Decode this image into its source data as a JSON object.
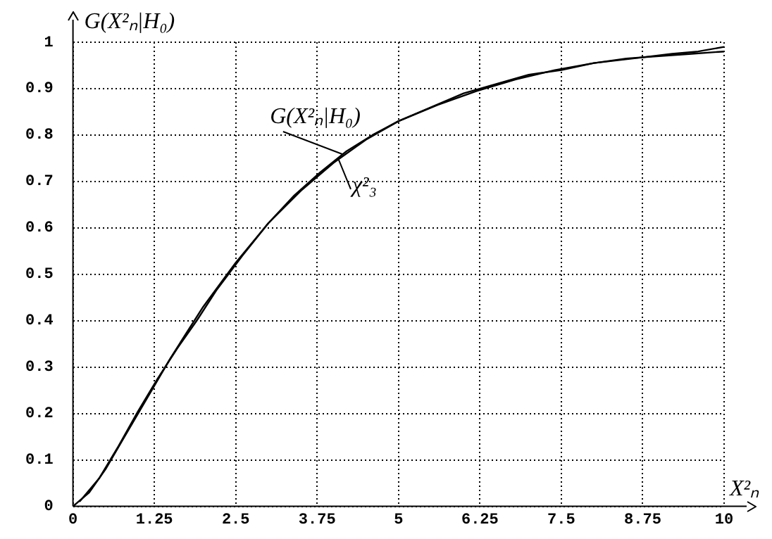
{
  "chart_data": {
    "type": "line",
    "xlabel": "X²ₙ",
    "ylabel": "G(X²ₙ|H₀)",
    "x": [
      0,
      0.25,
      0.5,
      0.75,
      1,
      1.25,
      1.5,
      1.75,
      2,
      2.5,
      3,
      3.5,
      4,
      4.5,
      5,
      5.5,
      6,
      6.5,
      7,
      7.5,
      8,
      8.5,
      9,
      9.5,
      10
    ],
    "series": [
      {
        "color": "#000000",
        "x": [
          0.1,
          0.4,
          0.7,
          1,
          1.3,
          1.6,
          1.9,
          2.2,
          2.6,
          3,
          3.4,
          3.8,
          4.2,
          4.6,
          5,
          5.6,
          6.2,
          6.8,
          7.4,
          8,
          8.6,
          9.2,
          9.6,
          10
        ],
        "values": [
          0.01,
          0.06,
          0.13,
          0.205,
          0.275,
          0.34,
          0.4,
          0.465,
          0.54,
          0.61,
          0.67,
          0.72,
          0.765,
          0.8,
          0.83,
          0.865,
          0.895,
          0.92,
          0.94,
          0.955,
          0.965,
          0.975,
          0.98,
          0.99
        ]
      },
      {
        "color": "#000000",
        "values": [
          0,
          0.03,
          0.08,
          0.14,
          0.2,
          0.26,
          0.32,
          0.375,
          0.43,
          0.525,
          0.61,
          0.68,
          0.74,
          0.79,
          0.83,
          0.86,
          0.89,
          0.91,
          0.93,
          0.94,
          0.955,
          0.965,
          0.97,
          0.975,
          0.98
        ]
      }
    ],
    "annotations": [
      {
        "text": "G(X²ₙ|H₀)",
        "x": 4.2,
        "y": 0.765
      },
      {
        "text": "χ²₃",
        "x": 4.05,
        "y": 0.75
      }
    ],
    "xlim": [
      0,
      10
    ],
    "xticks": [
      0,
      1.25,
      2.5,
      3.75,
      5,
      6.25,
      7.5,
      8.75,
      10
    ],
    "ylim": [
      0,
      1
    ],
    "yticks": [
      0,
      0.1,
      0.2,
      0.3,
      0.4,
      0.5,
      0.6,
      0.7,
      0.8,
      0.9,
      1
    ],
    "grid": true,
    "marker": "none",
    "line_style": "solid"
  }
}
